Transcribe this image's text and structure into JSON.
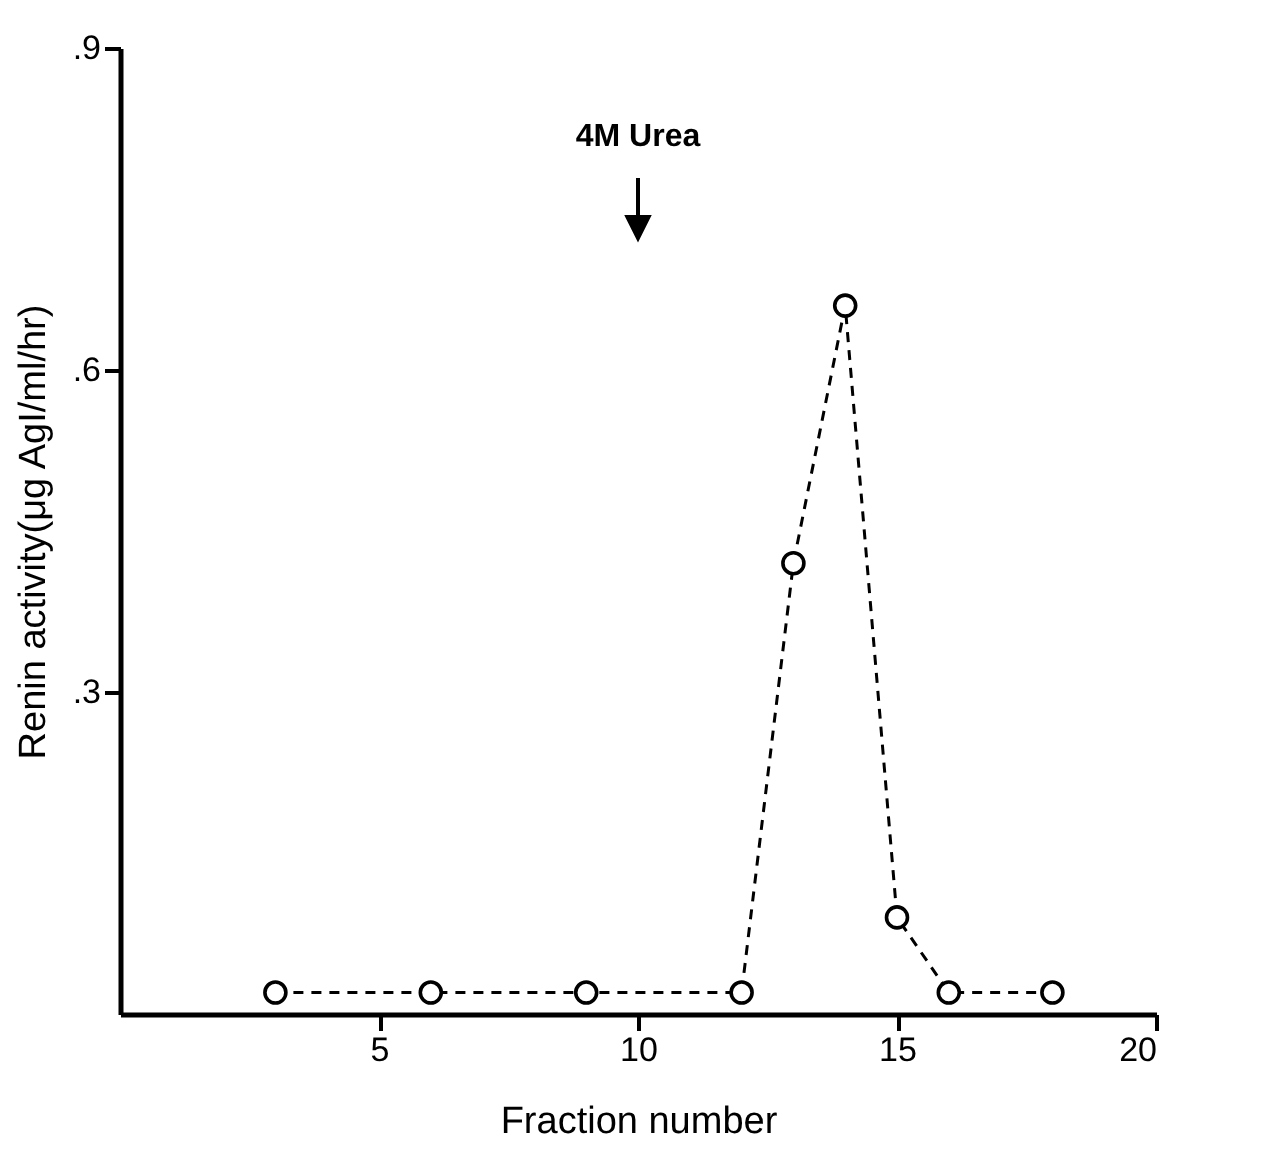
{
  "chart_data": {
    "type": "line",
    "xlabel": "Fraction number",
    "ylabel": "Renin activity(μg AgI/ml/hr)",
    "x": [
      3,
      6,
      9,
      12,
      13,
      14,
      15,
      16,
      18
    ],
    "series": [
      {
        "color": "#000000",
        "values": [
          0.02,
          0.02,
          0.02,
          0.02,
          0.42,
          0.66,
          0.09,
          0.02,
          0.02
        ]
      }
    ],
    "xlim": [
      0,
      20
    ],
    "xticks": [
      5,
      10,
      15,
      20
    ],
    "ylim": [
      0,
      0.9
    ],
    "yticks": [
      {
        "value": 0.3,
        "label": ".3"
      },
      {
        "value": 0.6,
        "label": ".6"
      },
      {
        "value": 0.9,
        "label": ".9"
      }
    ],
    "annotations": [
      "4M Urea"
    ],
    "marker": "circle",
    "line_style": "dashed"
  }
}
